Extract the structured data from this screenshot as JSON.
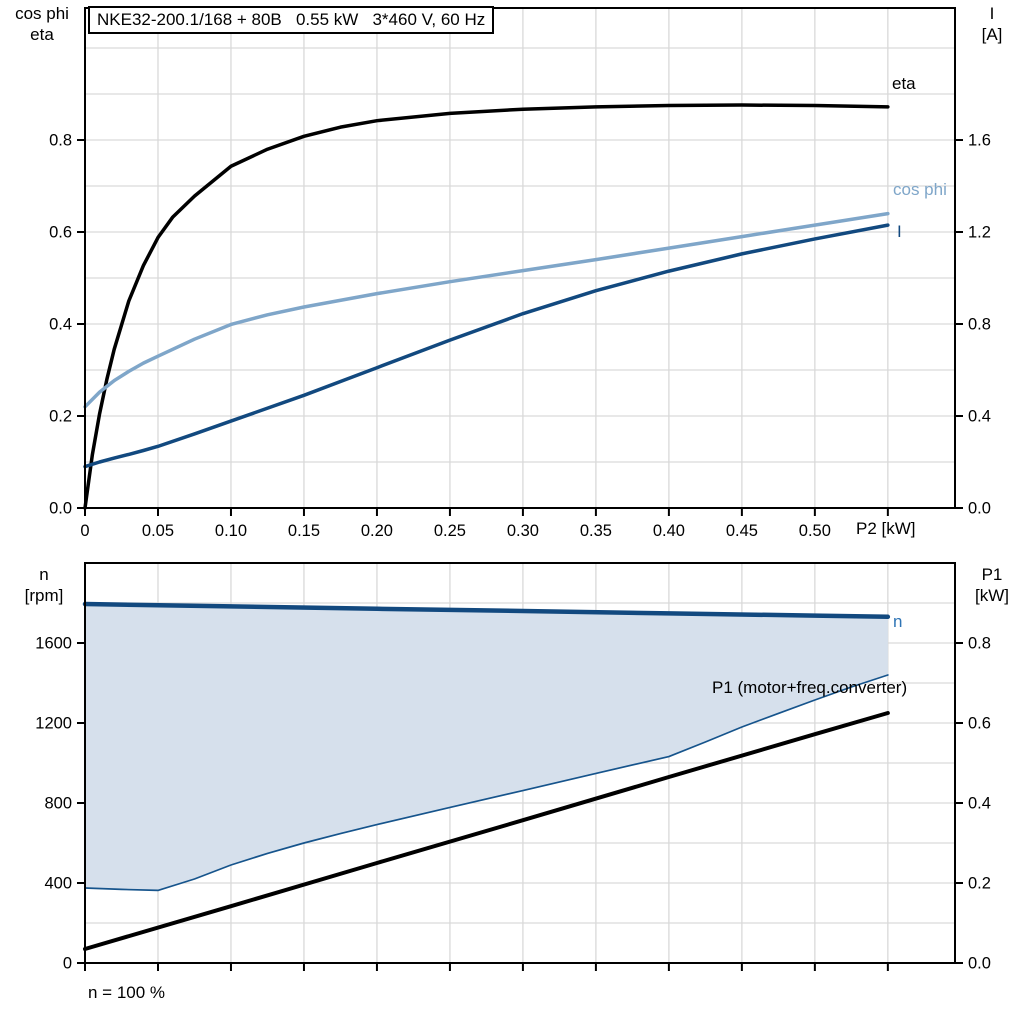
{
  "title": "NKE32-200.1/168 + 80B   0.55 kW   3*460 V, 60 Hz",
  "footer": "n = 100 %",
  "axis_labels": {
    "top_left": [
      "cos phi",
      "eta"
    ],
    "top_right": [
      "I",
      "[A]"
    ],
    "bottom_left": [
      "n",
      "[rpm]"
    ],
    "bottom_right": [
      "P1",
      "[kW]"
    ],
    "x": "P2 [kW]"
  },
  "curve_labels": {
    "eta": "eta",
    "cos_phi": "cos phi",
    "current": "I",
    "n": "n",
    "p1": "P1 (motor+freq.converter)"
  },
  "colors": {
    "black": "#000000",
    "light_blue": "#7fa6c9",
    "navy": "#12497f",
    "thin_navy": "#16548c",
    "label_blue": "#2e74b5",
    "area_fill": "#d6e0ec",
    "grid": "#d9d9d9"
  },
  "chart_data": [
    {
      "name": "motor-curves-panel",
      "type": "line",
      "title": "NKE32-200.1/168 + 80B   0.55 kW   3*460 V, 60 Hz",
      "x_axis": {
        "label": "P2 [kW]",
        "min": 0,
        "max": 0.596,
        "ticks": [
          0,
          0.05,
          0.1,
          0.15,
          0.2,
          0.25,
          0.3,
          0.35,
          0.4,
          0.45,
          0.5,
          0.55
        ],
        "tick_labels": [
          "0",
          "0.05",
          "0.10",
          "0.15",
          "0.20",
          "0.25",
          "0.30",
          "0.35",
          "0.40",
          "0.45",
          "0.50",
          ""
        ]
      },
      "y_left": {
        "label": "cos phi / eta",
        "min": 0,
        "max": 1.087,
        "grid_step": 0.1,
        "ticks": [
          0,
          0.2,
          0.4,
          0.6,
          0.8
        ],
        "tick_labels": [
          "0.0",
          "0.2",
          "0.4",
          "0.6",
          "0.8"
        ]
      },
      "y_right": {
        "label": "I [A]",
        "min": 0,
        "max": 2.174,
        "ticks": [
          0,
          0.4,
          0.8,
          1.2,
          1.6
        ],
        "tick_labels": [
          "0.0",
          "0.4",
          "0.8",
          "1.2",
          "1.6"
        ]
      },
      "series": [
        {
          "name": "eta",
          "axis": "left",
          "color": "#000000",
          "width": 3.5,
          "points": [
            [
              0,
              0
            ],
            [
              0.005,
              0.115
            ],
            [
              0.01,
              0.205
            ],
            [
              0.015,
              0.28
            ],
            [
              0.02,
              0.345
            ],
            [
              0.03,
              0.45
            ],
            [
              0.04,
              0.527
            ],
            [
              0.05,
              0.588
            ],
            [
              0.06,
              0.632
            ],
            [
              0.075,
              0.678
            ],
            [
              0.1,
              0.743
            ],
            [
              0.125,
              0.78
            ],
            [
              0.15,
              0.808
            ],
            [
              0.175,
              0.828
            ],
            [
              0.2,
              0.842
            ],
            [
              0.25,
              0.858
            ],
            [
              0.3,
              0.867
            ],
            [
              0.35,
              0.872
            ],
            [
              0.4,
              0.875
            ],
            [
              0.45,
              0.876
            ],
            [
              0.5,
              0.875
            ],
            [
              0.55,
              0.872
            ]
          ]
        },
        {
          "name": "cos phi",
          "axis": "left",
          "color": "#7fa6c9",
          "width": 3.5,
          "points": [
            [
              0,
              0.22
            ],
            [
              0.01,
              0.252
            ],
            [
              0.02,
              0.277
            ],
            [
              0.03,
              0.297
            ],
            [
              0.04,
              0.315
            ],
            [
              0.05,
              0.33
            ],
            [
              0.075,
              0.367
            ],
            [
              0.1,
              0.399
            ],
            [
              0.125,
              0.42
            ],
            [
              0.15,
              0.437
            ],
            [
              0.2,
              0.466
            ],
            [
              0.25,
              0.492
            ],
            [
              0.3,
              0.516
            ],
            [
              0.35,
              0.54
            ],
            [
              0.4,
              0.565
            ],
            [
              0.45,
              0.59
            ],
            [
              0.5,
              0.615
            ],
            [
              0.55,
              0.64
            ]
          ]
        },
        {
          "name": "I",
          "axis": "right",
          "color": "#12497f",
          "width": 3.5,
          "points": [
            [
              0,
              0.18
            ],
            [
              0.01,
              0.2
            ],
            [
              0.02,
              0.217
            ],
            [
              0.03,
              0.233
            ],
            [
              0.04,
              0.25
            ],
            [
              0.05,
              0.268
            ],
            [
              0.075,
              0.322
            ],
            [
              0.1,
              0.378
            ],
            [
              0.15,
              0.49
            ],
            [
              0.2,
              0.61
            ],
            [
              0.25,
              0.73
            ],
            [
              0.3,
              0.845
            ],
            [
              0.35,
              0.945
            ],
            [
              0.4,
              1.03
            ],
            [
              0.45,
              1.105
            ],
            [
              0.5,
              1.17
            ],
            [
              0.55,
              1.23
            ]
          ]
        }
      ]
    },
    {
      "name": "speed-power-panel",
      "type": "line",
      "x_axis": {
        "label": "",
        "min": 0,
        "max": 0.596,
        "ticks": [
          0,
          0.05,
          0.1,
          0.15,
          0.2,
          0.25,
          0.3,
          0.35,
          0.4,
          0.45,
          0.5,
          0.55
        ],
        "tick_labels": []
      },
      "y_left": {
        "label": "n [rpm]",
        "min": 0,
        "max": 2000,
        "grid_step": 200,
        "ticks": [
          0,
          400,
          800,
          1200,
          1600
        ],
        "tick_labels": [
          "0",
          "400",
          "800",
          "1200",
          "1600"
        ]
      },
      "y_right": {
        "label": "P1 [kW]",
        "min": 0,
        "max": 1.0,
        "ticks": [
          0,
          0.2,
          0.4,
          0.6,
          0.8
        ],
        "tick_labels": [
          "0.0",
          "0.2",
          "0.4",
          "0.6",
          "0.8"
        ]
      },
      "area": {
        "name": "speed-control-range",
        "fill": "#d6e0ec",
        "upper": "n",
        "lower": "n min"
      },
      "series": [
        {
          "name": "n",
          "axis": "left",
          "color": "#12497f",
          "width": 4.5,
          "points": [
            [
              0,
              1795
            ],
            [
              0.1,
              1783
            ],
            [
              0.2,
              1771
            ],
            [
              0.3,
              1760
            ],
            [
              0.4,
              1748
            ],
            [
              0.5,
              1737
            ],
            [
              0.55,
              1731
            ]
          ]
        },
        {
          "name": "n min",
          "axis": "left",
          "color": "#16548c",
          "width": 1.7,
          "points": [
            [
              0,
              375
            ],
            [
              0.025,
              368
            ],
            [
              0.05,
              363
            ],
            [
              0.075,
              420
            ],
            [
              0.1,
              490
            ],
            [
              0.125,
              548
            ],
            [
              0.15,
              600
            ],
            [
              0.175,
              647
            ],
            [
              0.2,
              692
            ],
            [
              0.25,
              778
            ],
            [
              0.3,
              862
            ],
            [
              0.35,
              948
            ],
            [
              0.4,
              1032
            ],
            [
              0.425,
              1105
            ],
            [
              0.45,
              1180
            ],
            [
              0.475,
              1248
            ],
            [
              0.5,
              1315
            ],
            [
              0.525,
              1380
            ],
            [
              0.55,
              1440
            ]
          ]
        },
        {
          "name": "P1 (motor+freq.converter)",
          "axis": "right",
          "color": "#000000",
          "width": 4,
          "points": [
            [
              0,
              0.035
            ],
            [
              0.1,
              0.142
            ],
            [
              0.2,
              0.25
            ],
            [
              0.3,
              0.357
            ],
            [
              0.4,
              0.465
            ],
            [
              0.5,
              0.572
            ],
            [
              0.55,
              0.625
            ]
          ]
        }
      ]
    }
  ]
}
